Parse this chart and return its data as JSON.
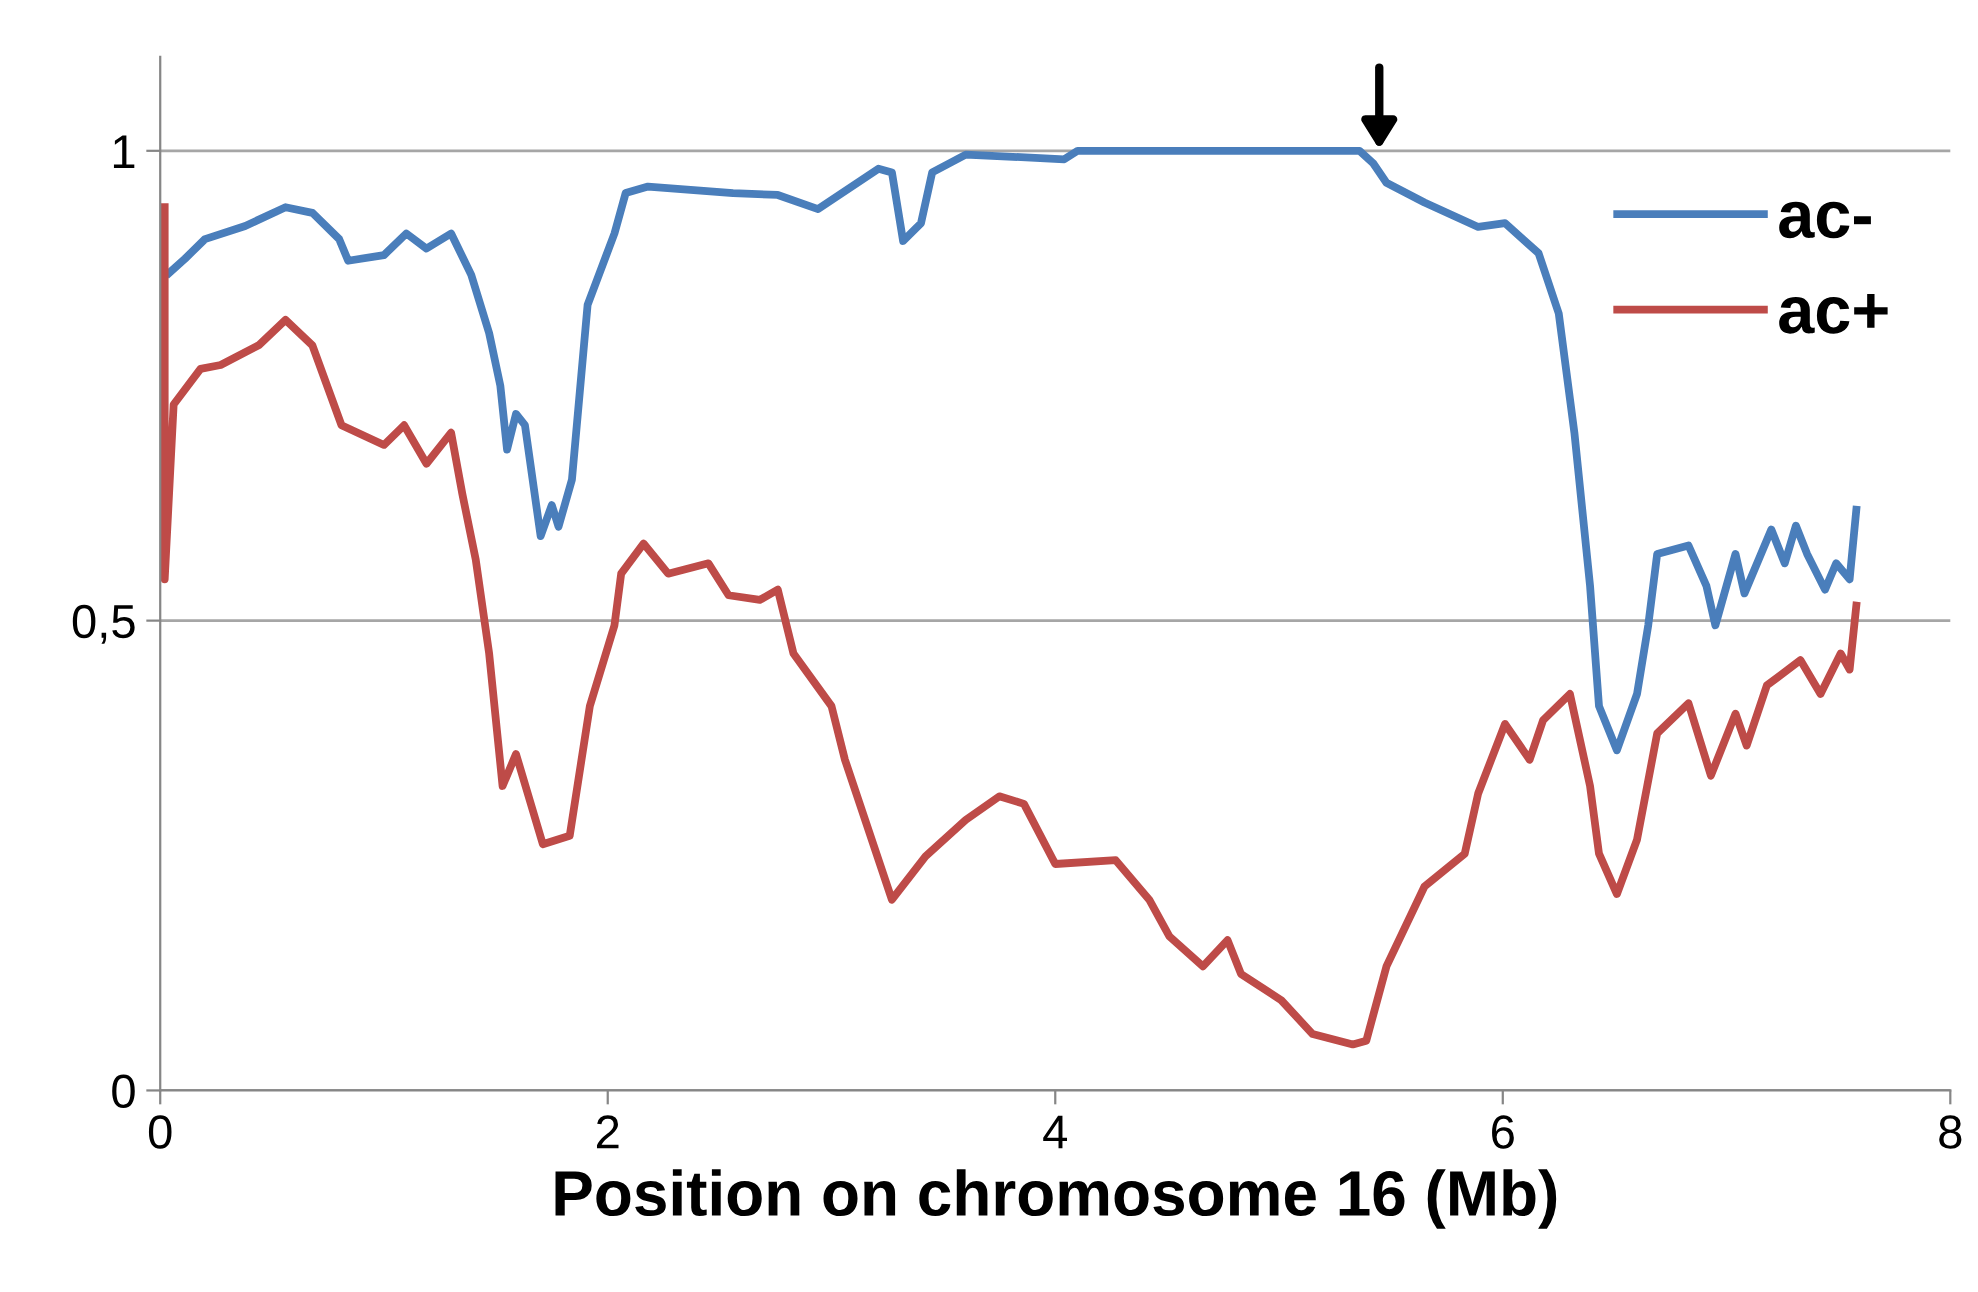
{
  "chart_data": {
    "type": "line",
    "xlabel": "Position on chromosome 16 (Mb)",
    "xlim": [
      0,
      8
    ],
    "xticks": [
      0,
      2,
      4,
      6,
      8
    ],
    "ylim": [
      0,
      1.1
    ],
    "yticks": [
      0,
      {
        "value": 0.5,
        "label": "0,5"
      },
      1
    ],
    "grid": "y",
    "legend": "top right",
    "marker": "none",
    "line_style": "solid",
    "series": [
      {
        "name": "ac-",
        "color": "#4a7ebb",
        "x": [
          0.04,
          0.11,
          0.2,
          0.38,
          0.56,
          0.68,
          0.8,
          0.84,
          1.0,
          1.1,
          1.19,
          1.3,
          1.39,
          1.47,
          1.52,
          1.55,
          1.59,
          1.63,
          1.7,
          1.75,
          1.78,
          1.84,
          1.91,
          2.03,
          2.08,
          2.18,
          2.56,
          2.76,
          2.94,
          3.21,
          3.27,
          3.32,
          3.4,
          3.45,
          3.6,
          4.04,
          4.1,
          5.36,
          5.42,
          5.48,
          5.65,
          5.89,
          6.01,
          6.16,
          6.25,
          6.32,
          6.39,
          6.43,
          6.51,
          6.6,
          6.65,
          6.69,
          6.83,
          6.91,
          6.95,
          7.04,
          7.08,
          7.2,
          7.26,
          7.31,
          7.36,
          7.44,
          7.49,
          7.55,
          7.58
        ],
        "values": [
          0.87,
          0.885,
          0.906,
          0.92,
          0.94,
          0.934,
          0.906,
          0.883,
          0.889,
          0.912,
          0.896,
          0.912,
          0.868,
          0.806,
          0.75,
          0.682,
          0.72,
          0.708,
          0.59,
          0.623,
          0.6,
          0.65,
          0.836,
          0.912,
          0.955,
          0.962,
          0.955,
          0.953,
          0.938,
          0.981,
          0.977,
          0.904,
          0.923,
          0.977,
          0.996,
          0.991,
          1.0,
          1.0,
          0.987,
          0.966,
          0.945,
          0.919,
          0.923,
          0.891,
          0.827,
          0.7,
          0.537,
          0.409,
          0.362,
          0.422,
          0.495,
          0.571,
          0.58,
          0.537,
          0.495,
          0.571,
          0.529,
          0.597,
          0.561,
          0.601,
          0.571,
          0.533,
          0.561,
          0.544,
          0.618
        ]
      },
      {
        "name": "ac+",
        "color": "#be4b48",
        "x": [
          0.02,
          0.02,
          0.06,
          0.18,
          0.27,
          0.44,
          0.56,
          0.68,
          0.81,
          1.0,
          1.09,
          1.19,
          1.3,
          1.35,
          1.41,
          1.47,
          1.53,
          1.59,
          1.71,
          1.83,
          1.92,
          2.03,
          2.06,
          2.16,
          2.27,
          2.45,
          2.54,
          2.68,
          2.76,
          2.83,
          3.0,
          3.06,
          3.27,
          3.42,
          3.6,
          3.75,
          3.86,
          4.0,
          4.27,
          4.42,
          4.51,
          4.66,
          4.77,
          4.83,
          5.01,
          5.15,
          5.33,
          5.39,
          5.48,
          5.65,
          5.83,
          5.89,
          6.01,
          6.12,
          6.18,
          6.3,
          6.39,
          6.43,
          6.51,
          6.6,
          6.69,
          6.83,
          6.93,
          7.04,
          7.09,
          7.18,
          7.33,
          7.42,
          7.51,
          7.55,
          7.58
        ],
        "values": [
          0.94,
          0.544,
          0.73,
          0.768,
          0.772,
          0.793,
          0.82,
          0.793,
          0.708,
          0.687,
          0.708,
          0.667,
          0.7,
          0.635,
          0.565,
          0.465,
          0.324,
          0.358,
          0.262,
          0.271,
          0.409,
          0.495,
          0.55,
          0.582,
          0.55,
          0.561,
          0.527,
          0.522,
          0.533,
          0.465,
          0.409,
          0.352,
          0.203,
          0.249,
          0.288,
          0.313,
          0.305,
          0.241,
          0.245,
          0.203,
          0.164,
          0.132,
          0.16,
          0.124,
          0.096,
          0.06,
          0.049,
          0.053,
          0.132,
          0.217,
          0.252,
          0.316,
          0.39,
          0.352,
          0.394,
          0.422,
          0.324,
          0.252,
          0.209,
          0.267,
          0.38,
          0.412,
          0.335,
          0.401,
          0.367,
          0.431,
          0.458,
          0.422,
          0.465,
          0.448,
          0.516
        ]
      }
    ]
  }
}
